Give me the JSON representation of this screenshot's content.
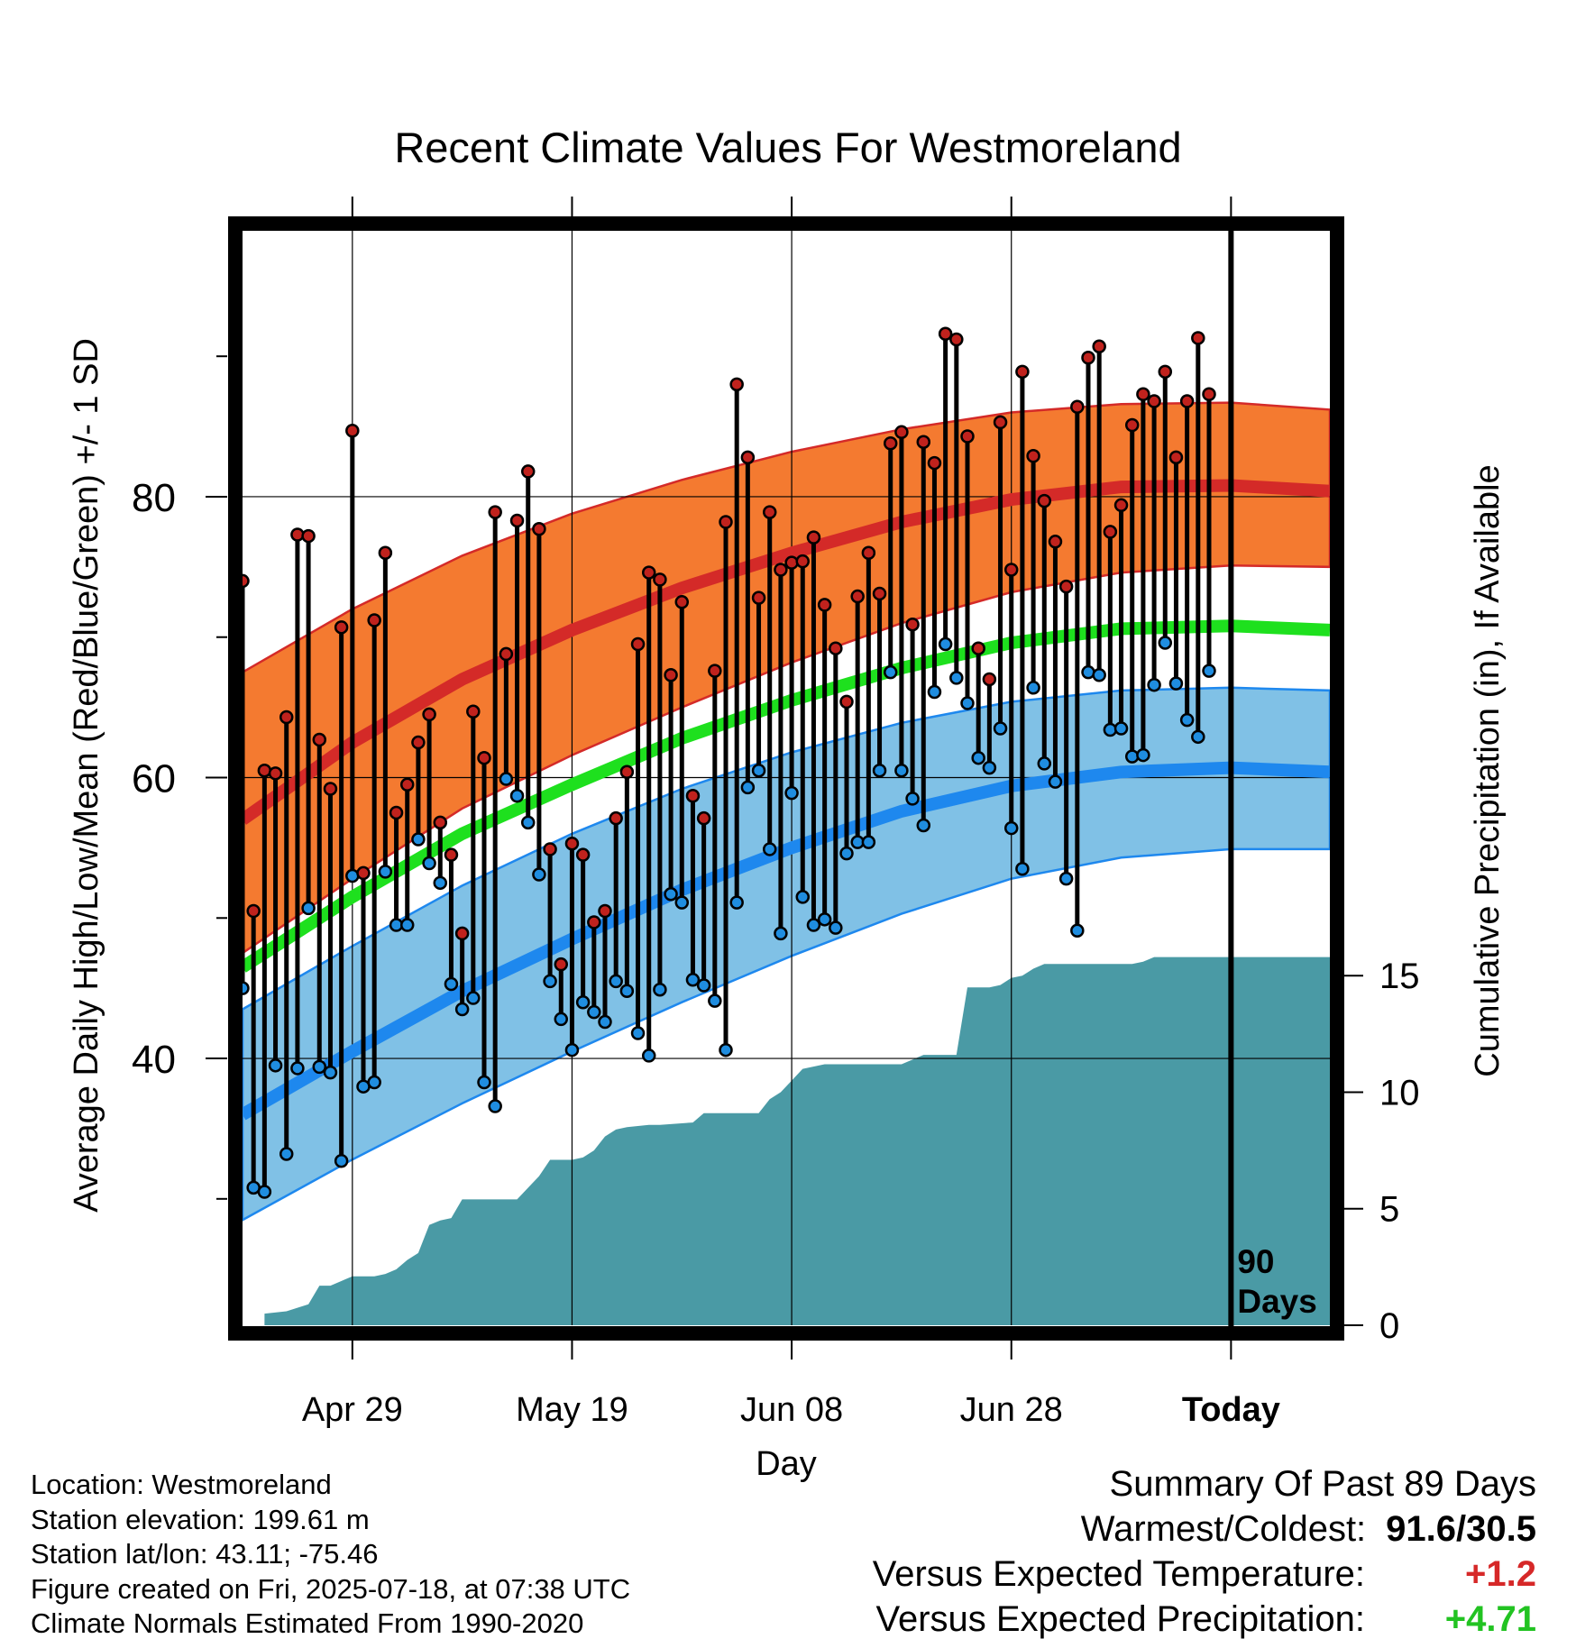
{
  "chart_data": {
    "type": "line",
    "title": "Recent Climate Values For Westmoreland",
    "xlabel": "Day",
    "ylabel": "Average Daily High/Low/Mean (Red/Blue/Green) +/- 1 SD",
    "y2label": "Cumulative Precipitation (in), If Available",
    "x_ticks": [
      {
        "day": 10,
        "label": "Apr 29"
      },
      {
        "day": 30,
        "label": "May 19"
      },
      {
        "day": 50,
        "label": "Jun 08"
      },
      {
        "day": 70,
        "label": "Jun 28"
      },
      {
        "day": 90,
        "label": "Today"
      }
    ],
    "xlim": [
      0,
      99
    ],
    "ylim": [
      21,
      99
    ],
    "y_ticks": [
      40,
      60,
      80
    ],
    "y_minor_ticks": [
      30,
      50,
      70,
      90
    ],
    "y2lim": [
      0,
      47
    ],
    "y2_ticks": [
      0,
      5,
      10,
      15
    ],
    "grid": true,
    "today_marker": {
      "day": 90,
      "label_line1": "90",
      "label_line2": "Days"
    },
    "normals": {
      "days": [
        0,
        10,
        20,
        30,
        40,
        50,
        60,
        70,
        80,
        90,
        99
      ],
      "high_mean": [
        57,
        62.5,
        67,
        70.5,
        73.5,
        76,
        78.2,
        79.8,
        80.7,
        80.8,
        80.4
      ],
      "high_upper": [
        67.5,
        72,
        75.8,
        78.8,
        81.2,
        83.2,
        84.8,
        86.0,
        86.6,
        86.7,
        86.2
      ],
      "high_lower": [
        47.5,
        52.8,
        57.8,
        61.6,
        65,
        68.2,
        71,
        73.2,
        74.6,
        75.1,
        75.0
      ],
      "mean": [
        46.5,
        51.5,
        56,
        59.5,
        62.8,
        65.5,
        67.8,
        69.6,
        70.6,
        70.8,
        70.5
      ],
      "low_mean": [
        36,
        40.5,
        44.8,
        48.5,
        52,
        55,
        57.6,
        59.4,
        60.4,
        60.7,
        60.4
      ],
      "low_upper": [
        43.5,
        48,
        52.3,
        56,
        59.2,
        61.8,
        63.9,
        65.4,
        66.2,
        66.4,
        66.2
      ],
      "low_lower": [
        28.5,
        32.8,
        36.8,
        40.5,
        44,
        47.3,
        50.3,
        52.8,
        54.3,
        54.9,
        54.9
      ]
    },
    "series": [
      {
        "name": "High",
        "values": [
          74,
          50.5,
          60.5,
          60.3,
          64.3,
          77.3,
          77.2,
          62.7,
          59.2,
          70.7,
          84.7,
          53.2,
          71.2,
          76.0,
          57.5,
          59.5,
          62.5,
          64.5,
          56.8,
          54.5,
          48.9,
          64.7,
          61.4,
          78.9,
          68.8,
          78.3,
          81.8,
          77.7,
          54.9,
          46.7,
          55.3,
          54.5,
          49.7,
          50.5,
          57.1,
          60.4,
          69.5,
          74.6,
          74.1,
          67.3,
          72.5,
          58.7,
          57.1,
          67.6,
          78.2,
          88.0,
          82.8,
          72.8,
          78.9,
          74.8,
          75.3,
          75.4,
          77.1,
          72.3,
          69.2,
          65.4,
          72.9,
          76.0,
          73.1,
          83.8,
          84.6,
          70.9,
          83.9,
          82.4,
          91.6,
          91.2,
          84.3,
          69.2,
          67.0,
          85.3,
          74.8,
          88.9,
          82.9,
          79.7,
          76.8,
          73.6,
          86.4,
          89.9,
          90.7,
          77.5,
          79.4,
          85.1,
          87.3,
          86.8,
          88.9,
          82.8,
          86.8,
          91.3,
          87.3
        ]
      },
      {
        "name": "Low",
        "values": [
          45.0,
          30.8,
          30.5,
          39.5,
          33.2,
          39.3,
          50.7,
          39.4,
          39.0,
          32.7,
          53.0,
          38.0,
          38.3,
          53.3,
          49.5,
          49.5,
          55.6,
          53.9,
          52.5,
          45.3,
          43.5,
          44.3,
          38.3,
          36.6,
          59.9,
          58.7,
          56.8,
          53.1,
          45.5,
          42.8,
          40.6,
          44.0,
          43.3,
          42.6,
          45.5,
          44.8,
          41.8,
          40.2,
          44.9,
          51.7,
          51.1,
          45.6,
          45.2,
          44.1,
          40.6,
          51.1,
          59.3,
          60.5,
          54.9,
          48.9,
          58.9,
          51.5,
          49.5,
          49.9,
          49.3,
          54.6,
          55.4,
          55.4,
          60.5,
          67.5,
          60.5,
          58.5,
          56.6,
          66.1,
          69.5,
          67.1,
          65.3,
          61.4,
          60.7,
          63.5,
          56.4,
          53.5,
          66.4,
          61.0,
          59.7,
          52.8,
          49.1,
          67.5,
          67.3,
          63.4,
          63.5,
          61.5,
          61.6,
          66.6,
          69.6,
          66.7,
          64.1,
          62.9,
          67.6
        ]
      },
      {
        "name": "Cumulative Precipitation",
        "days": [
          2,
          4,
          6,
          7,
          8,
          10,
          12,
          13,
          14,
          15,
          16,
          17,
          18,
          19,
          20,
          21,
          25,
          26,
          27,
          28,
          29,
          30,
          31,
          32,
          33,
          34,
          35,
          37,
          38,
          41,
          42,
          45,
          47,
          48,
          49,
          50,
          51,
          53,
          55,
          60,
          62,
          64,
          65,
          66,
          68,
          69,
          70,
          71,
          72,
          73,
          81,
          82,
          83,
          99
        ],
        "values": [
          0.5,
          0.6,
          0.9,
          1.7,
          1.7,
          2.1,
          2.1,
          2.2,
          2.4,
          2.8,
          3.1,
          4.3,
          4.5,
          4.6,
          5.4,
          5.4,
          5.4,
          5.9,
          6.4,
          7.1,
          7.1,
          7.1,
          7.2,
          7.5,
          8.1,
          8.4,
          8.5,
          8.6,
          8.6,
          8.7,
          9.1,
          9.1,
          9.1,
          9.7,
          10.0,
          10.5,
          11.0,
          11.2,
          11.2,
          11.2,
          11.6,
          11.6,
          11.6,
          14.5,
          14.5,
          14.6,
          14.9,
          15.0,
          15.3,
          15.5,
          15.5,
          15.6,
          15.8,
          15.8
        ]
      }
    ]
  },
  "info": {
    "location": "Location: Westmoreland",
    "elevation": "Station elevation: 199.61 m",
    "latlon": "Station lat/lon: 43.11; -75.46",
    "created": "Figure created on Fri, 2025-07-18, at 07:38 UTC",
    "normals": "Climate Normals Estimated From 1990-2020"
  },
  "summary": {
    "heading": "Summary Of Past 89 Days",
    "warm_cold_label": "Warmest/Coldest:",
    "warm_cold_value": "91.6/30.5",
    "temp_label": "Versus Expected Temperature:",
    "temp_value": "+1.2",
    "temp_color": "#d62828",
    "precip_label": "Versus Expected Precipitation:",
    "precip_value": "+4.71",
    "precip_color": "#22c322"
  },
  "colors": {
    "high_band": "#f47a30",
    "high_line": "#d42a28",
    "low_band": "#80c1e6",
    "low_line": "#1e88ee",
    "mean_line": "#1ee01e",
    "precip_fill": "#4a9aa5",
    "high_dot": "#c0221d",
    "low_dot": "#1f8de0"
  }
}
